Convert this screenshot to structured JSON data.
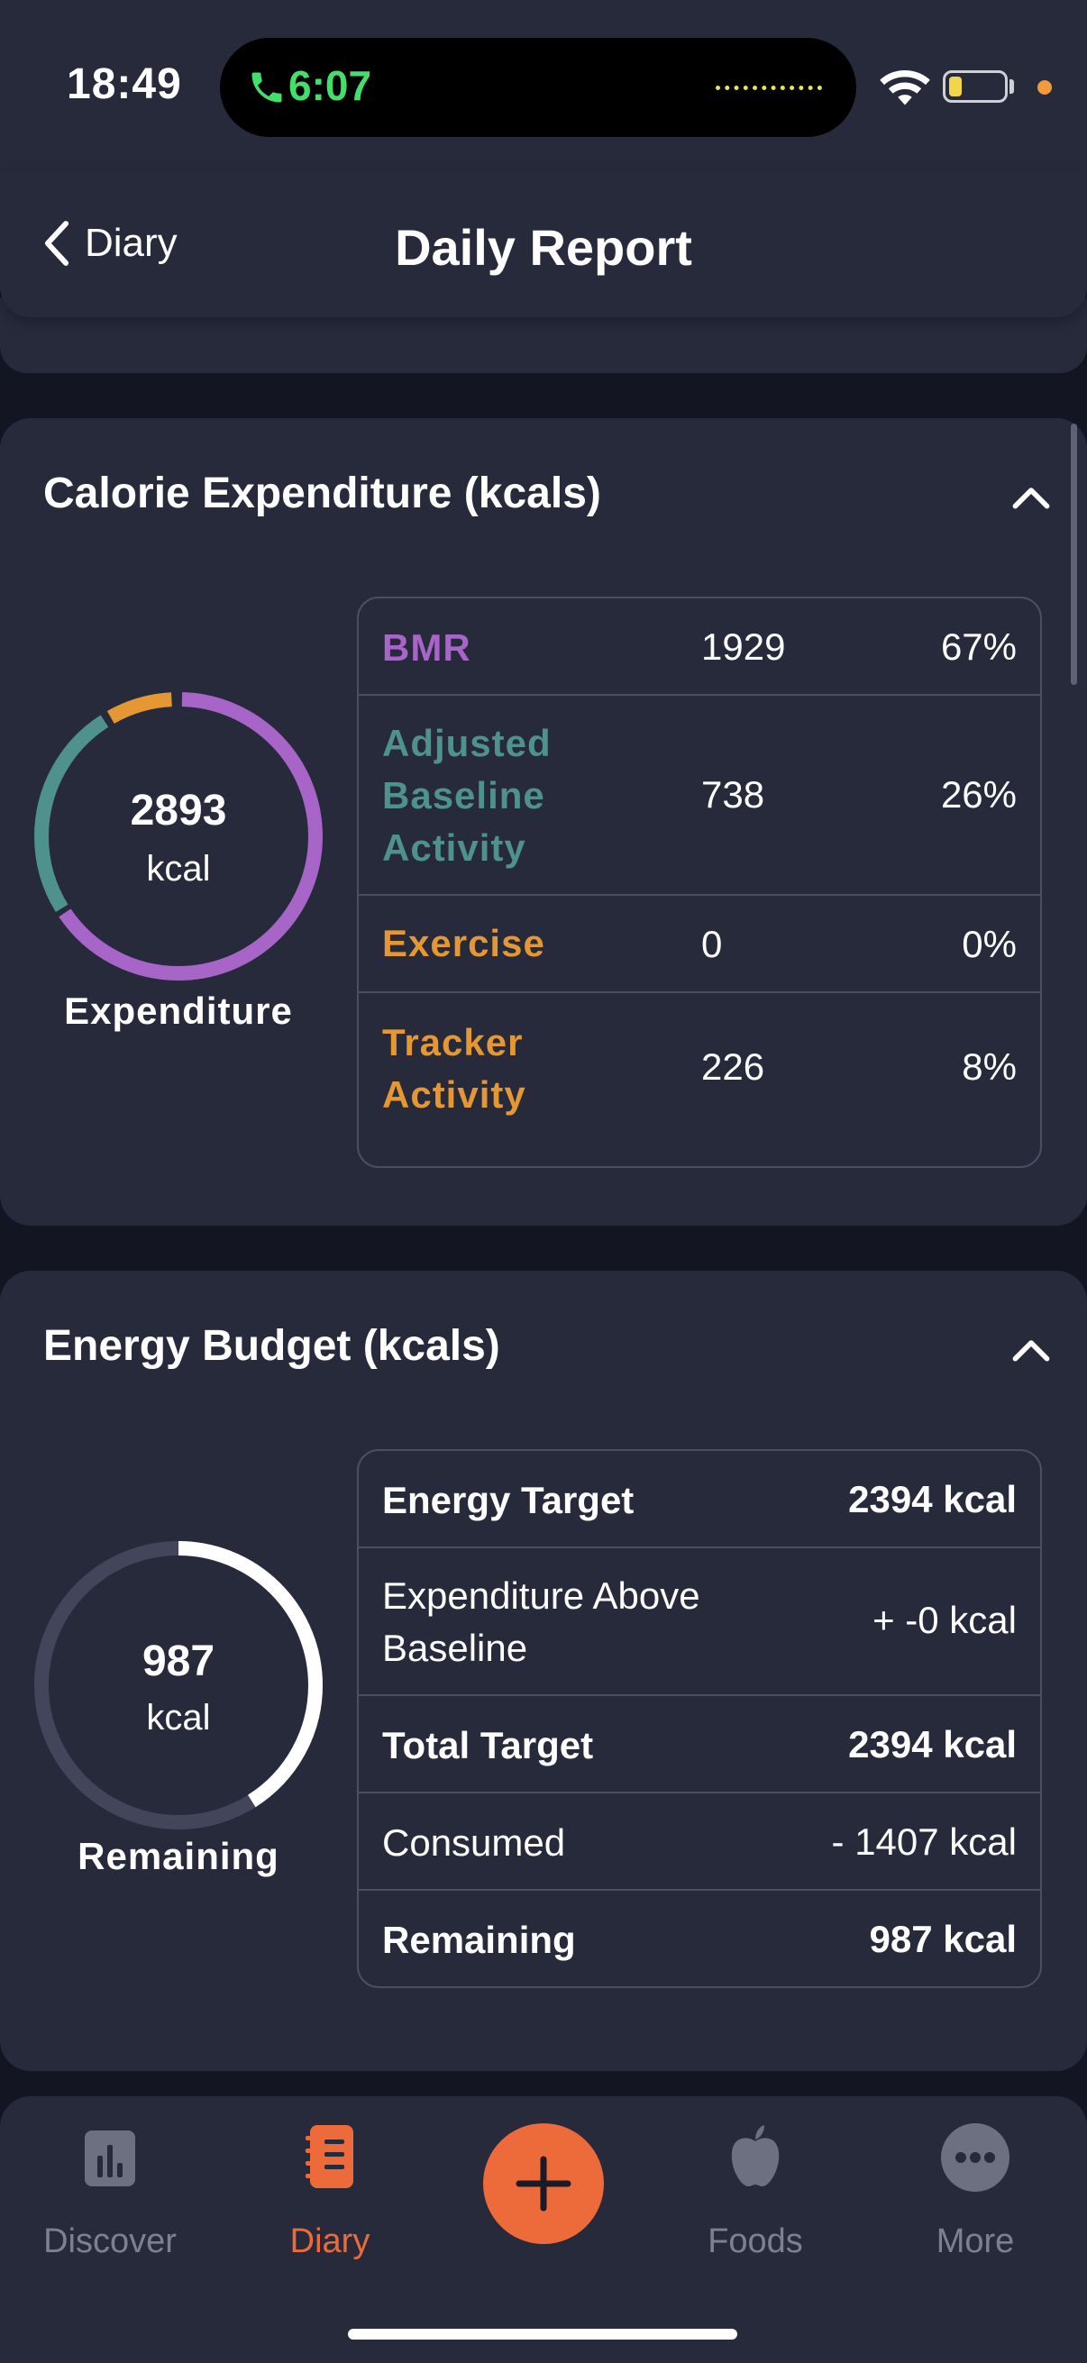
{
  "status_bar": {
    "time": "18:49",
    "call_time": "6:07"
  },
  "nav": {
    "back_label": "Diary",
    "title": "Daily Report"
  },
  "expenditure": {
    "title": "Calorie Expenditure (kcals)",
    "total": "2893",
    "unit": "kcal",
    "caption": "Expenditure",
    "rows": [
      {
        "label": "BMR",
        "value": "1929",
        "pct": "67%",
        "color": "#a765c7"
      },
      {
        "label": "Adjusted Baseline Activity",
        "value": "738",
        "pct": "26%",
        "color": "#4f918c"
      },
      {
        "label": "Exercise",
        "value": "0",
        "pct": "0%",
        "color": "#e49733"
      },
      {
        "label": "Tracker Activity",
        "value": "226",
        "pct": "8%",
        "color": "#e49733"
      }
    ]
  },
  "budget": {
    "title": "Energy Budget (kcals)",
    "remaining_value": "987",
    "unit": "kcal",
    "caption": "Remaining",
    "rows": [
      {
        "label": "Energy Target",
        "value": "2394 kcal",
        "bold": true
      },
      {
        "label": "Expenditure Above Baseline",
        "value": "+ -0 kcal",
        "bold": false
      },
      {
        "label": "Total Target",
        "value": "2394 kcal",
        "bold": true
      },
      {
        "label": "Consumed",
        "value": "- 1407 kcal",
        "bold": false
      },
      {
        "label": "Remaining",
        "value": "987 kcal",
        "bold": true
      }
    ],
    "remaining_fraction": 0.41
  },
  "tabs": [
    {
      "label": "Discover",
      "icon": "bar-chart-icon",
      "active": false
    },
    {
      "label": "Diary",
      "icon": "notebook-icon",
      "active": true
    },
    {
      "label": "",
      "icon": "plus-icon",
      "active": false
    },
    {
      "label": "Foods",
      "icon": "apple-icon",
      "active": false
    },
    {
      "label": "More",
      "icon": "more-dots-icon",
      "active": false
    }
  ],
  "colors": {
    "accent": "#ed6a3a",
    "card": "#272a3b",
    "background": "#131522",
    "bmr": "#a765c7",
    "baseline": "#4f918c",
    "exercise": "#e49733"
  }
}
